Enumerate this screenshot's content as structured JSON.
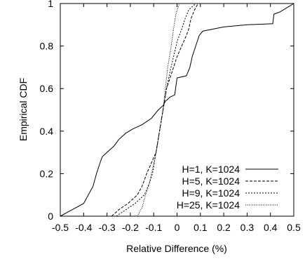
{
  "chart_data": {
    "type": "line",
    "title": "",
    "xlabel": "Relative Difference (%)",
    "ylabel": "Empirical CDF",
    "xlim": [
      -0.5,
      0.5
    ],
    "ylim": [
      0,
      1
    ],
    "xticks": [
      -0.5,
      -0.4,
      -0.3,
      -0.2,
      -0.1,
      0,
      0.1,
      0.2,
      0.3,
      0.4,
      0.5
    ],
    "xtick_labels": [
      "-0.5",
      "-0.4",
      "-0.3",
      "-0.2",
      "-0.1",
      "0",
      "0.1",
      "0.2",
      "0.3",
      "0.4",
      "0.5"
    ],
    "yticks": [
      0,
      0.2,
      0.4,
      0.6,
      0.8,
      1
    ],
    "ytick_labels": [
      "0",
      "0.2",
      "0.4",
      "0.6",
      "0.8",
      "1"
    ],
    "grid": false,
    "legend_position": "bottom-right",
    "series": [
      {
        "name": "H=1, K=1024",
        "dash": "solid",
        "points": [
          [
            -0.5,
            0.0
          ],
          [
            -0.45,
            0.03
          ],
          [
            -0.4,
            0.06
          ],
          [
            -0.38,
            0.1
          ],
          [
            -0.36,
            0.14
          ],
          [
            -0.345,
            0.2
          ],
          [
            -0.33,
            0.25
          ],
          [
            -0.32,
            0.28
          ],
          [
            -0.3,
            0.3
          ],
          [
            -0.27,
            0.33
          ],
          [
            -0.25,
            0.36
          ],
          [
            -0.22,
            0.39
          ],
          [
            -0.19,
            0.41
          ],
          [
            -0.15,
            0.43
          ],
          [
            -0.11,
            0.46
          ],
          [
            -0.08,
            0.5
          ],
          [
            -0.06,
            0.52
          ],
          [
            -0.05,
            0.54
          ],
          [
            -0.04,
            0.55
          ],
          [
            -0.03,
            0.56
          ],
          [
            -0.01,
            0.57
          ],
          [
            0.0,
            0.65
          ],
          [
            0.02,
            0.655
          ],
          [
            0.04,
            0.66
          ],
          [
            0.055,
            0.7
          ],
          [
            0.065,
            0.75
          ],
          [
            0.08,
            0.8
          ],
          [
            0.095,
            0.85
          ],
          [
            0.11,
            0.87
          ],
          [
            0.2,
            0.89
          ],
          [
            0.3,
            0.9
          ],
          [
            0.41,
            0.905
          ],
          [
            0.415,
            0.95
          ],
          [
            0.44,
            0.96
          ],
          [
            0.47,
            0.98
          ],
          [
            0.5,
            1.0
          ]
        ]
      },
      {
        "name": "H=5, K=1024",
        "dash": "dashed",
        "points": [
          [
            -0.28,
            0.0
          ],
          [
            -0.25,
            0.03
          ],
          [
            -0.21,
            0.06
          ],
          [
            -0.17,
            0.1
          ],
          [
            -0.15,
            0.14
          ],
          [
            -0.13,
            0.2
          ],
          [
            -0.11,
            0.25
          ],
          [
            -0.09,
            0.3
          ],
          [
            -0.075,
            0.4
          ],
          [
            -0.06,
            0.5
          ],
          [
            -0.045,
            0.6
          ],
          [
            -0.03,
            0.65
          ],
          [
            -0.015,
            0.7
          ],
          [
            0.0,
            0.75
          ],
          [
            0.02,
            0.8
          ],
          [
            0.04,
            0.85
          ],
          [
            0.05,
            0.88
          ],
          [
            0.06,
            0.93
          ],
          [
            0.075,
            0.97
          ],
          [
            0.09,
            1.0
          ]
        ]
      },
      {
        "name": "H=9, K=1024",
        "dash": "dotted",
        "points": [
          [
            -0.26,
            0.0
          ],
          [
            -0.22,
            0.03
          ],
          [
            -0.18,
            0.06
          ],
          [
            -0.14,
            0.1
          ],
          [
            -0.12,
            0.15
          ],
          [
            -0.105,
            0.2
          ],
          [
            -0.09,
            0.3
          ],
          [
            -0.075,
            0.4
          ],
          [
            -0.06,
            0.5
          ],
          [
            -0.045,
            0.6
          ],
          [
            -0.03,
            0.68
          ],
          [
            -0.015,
            0.75
          ],
          [
            0.0,
            0.82
          ],
          [
            0.02,
            0.88
          ],
          [
            0.035,
            0.93
          ],
          [
            0.05,
            0.97
          ],
          [
            0.08,
            1.0
          ]
        ]
      },
      {
        "name": "H=25, K=1024",
        "dash": "dotted-fine",
        "points": [
          [
            -0.17,
            0.0
          ],
          [
            -0.15,
            0.04
          ],
          [
            -0.135,
            0.1
          ],
          [
            -0.12,
            0.15
          ],
          [
            -0.105,
            0.22
          ],
          [
            -0.09,
            0.3
          ],
          [
            -0.075,
            0.4
          ],
          [
            -0.06,
            0.5
          ],
          [
            -0.05,
            0.6
          ],
          [
            -0.04,
            0.7
          ],
          [
            -0.025,
            0.8
          ],
          [
            -0.015,
            0.88
          ],
          [
            -0.005,
            0.95
          ],
          [
            0.01,
            1.0
          ]
        ]
      }
    ]
  }
}
